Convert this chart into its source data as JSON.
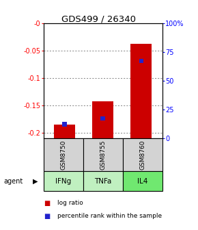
{
  "title": "GDS499 / 26340",
  "categories": [
    "IFNg",
    "TNFa",
    "IL4"
  ],
  "sample_ids": [
    "GSM8750",
    "GSM8755",
    "GSM8760"
  ],
  "log_ratios": [
    -0.185,
    -0.143,
    -0.038
  ],
  "percentile_ranks": [
    0.12,
    0.17,
    0.67
  ],
  "ylim_left": [
    -0.21,
    0.0
  ],
  "yticks_left": [
    -0.2,
    -0.15,
    -0.1,
    -0.05,
    0.0
  ],
  "ytick_labels_left": [
    "-0.2",
    "-0.15",
    "-0.1",
    "-0.05",
    "-0"
  ],
  "yticks_right": [
    0.0,
    0.25,
    0.5,
    0.75,
    1.0
  ],
  "ytick_labels_right": [
    "0",
    "25",
    "50",
    "75",
    "100%"
  ],
  "bar_color": "#cc0000",
  "rank_color": "#2222cc",
  "agent_colors": [
    "#c0f0c0",
    "#c0f0c0",
    "#70e870"
  ],
  "gsm_color": "#d3d3d3",
  "legend_log_ratio": "log ratio",
  "legend_percentile": "percentile rank within the sample",
  "bar_width": 0.55,
  "rank_bar_width": 0.12
}
